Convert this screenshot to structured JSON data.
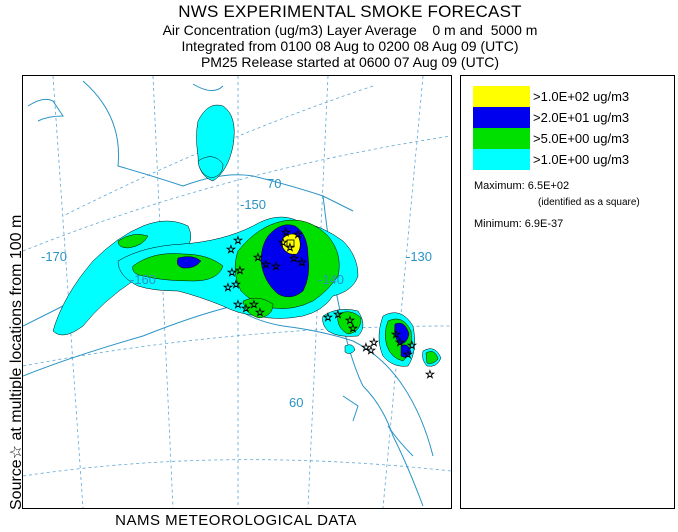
{
  "title": {
    "main": "NWS EXPERIMENTAL SMOKE FORECAST",
    "line2": "Air Concentration (ug/m3) Layer Average    0 m and  5000 m",
    "line3": "Integrated from 0100 08 Aug to 0200 08 Aug 09 (UTC)",
    "line4": "PM25 Release started at 0600 07 Aug 09 (UTC)"
  },
  "side_label": "Source☆ at multiple locations from 100 m",
  "footer": "NAMS METEOROLOGICAL DATA",
  "map": {
    "longitude_labels": [
      "-170",
      "-160",
      "-150",
      "-140",
      "-130"
    ],
    "latitude_labels": [
      "70",
      "60"
    ],
    "colors": {
      "coast": "#2a93c6",
      "grid": "#5fa8d6"
    }
  },
  "legend": {
    "items": [
      {
        "label": ">1.0E+02 ug/m3",
        "color": "#ffff00"
      },
      {
        "label": ">2.0E+01 ug/m3",
        "color": "#0000ee"
      },
      {
        "label": ">5.0E+00 ug/m3",
        "color": "#00e000"
      },
      {
        "label": ">1.0E+00 ug/m3",
        "color": "#00ffff"
      }
    ],
    "maximum_label": "Maximum: 6.5E+02",
    "maximum_note": "(identified as a square)",
    "minimum_label": "Minimum: 6.9E-37"
  }
}
